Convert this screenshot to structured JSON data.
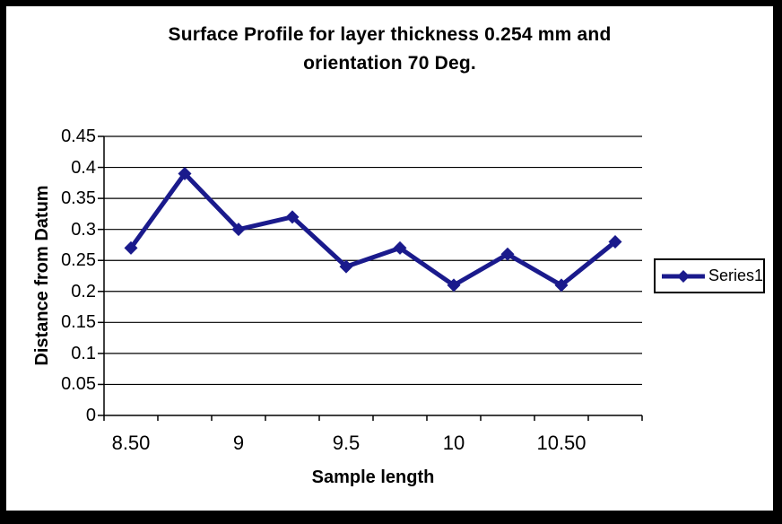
{
  "chart_data": {
    "type": "line",
    "title": "Surface Profile for layer thickness 0.254 mm and orientation 70 Deg.",
    "title_lines": [
      "Surface Profile for layer thickness 0.254 mm and",
      "orientation 70 Deg."
    ],
    "xlabel": "Sample length",
    "ylabel": "Distance from Datum",
    "x": [
      8.5,
      8.75,
      9,
      9.25,
      9.5,
      9.75,
      10,
      10.25,
      10.5,
      10.75
    ],
    "series": [
      {
        "name": "Series1",
        "marker": "diamond",
        "color": "#1a1a8c",
        "values": [
          0.27,
          0.39,
          0.3,
          0.32,
          0.24,
          0.27,
          0.21,
          0.26,
          0.21,
          0.28
        ]
      }
    ],
    "ylim": [
      0,
      0.45
    ],
    "ytick_step": 0.05,
    "ytick_labels": [
      "0.45",
      "0.4",
      "0.35",
      "0.3",
      "0.25",
      "0.2",
      "0.15",
      "0.1",
      "0.05",
      "0"
    ],
    "xtick_labels": [
      "8.50",
      "9",
      "9.5",
      "10",
      "10.50"
    ],
    "xtick_label_category_indices": [
      0,
      2,
      4,
      6,
      8
    ],
    "grid": "horizontal",
    "legend_position": "right",
    "legend_entries": [
      "Series1"
    ]
  },
  "colors": {
    "series": "#1a1a8c",
    "axis": "#000000",
    "gridline": "#000000",
    "frame": "#000000",
    "background": "#ffffff"
  }
}
